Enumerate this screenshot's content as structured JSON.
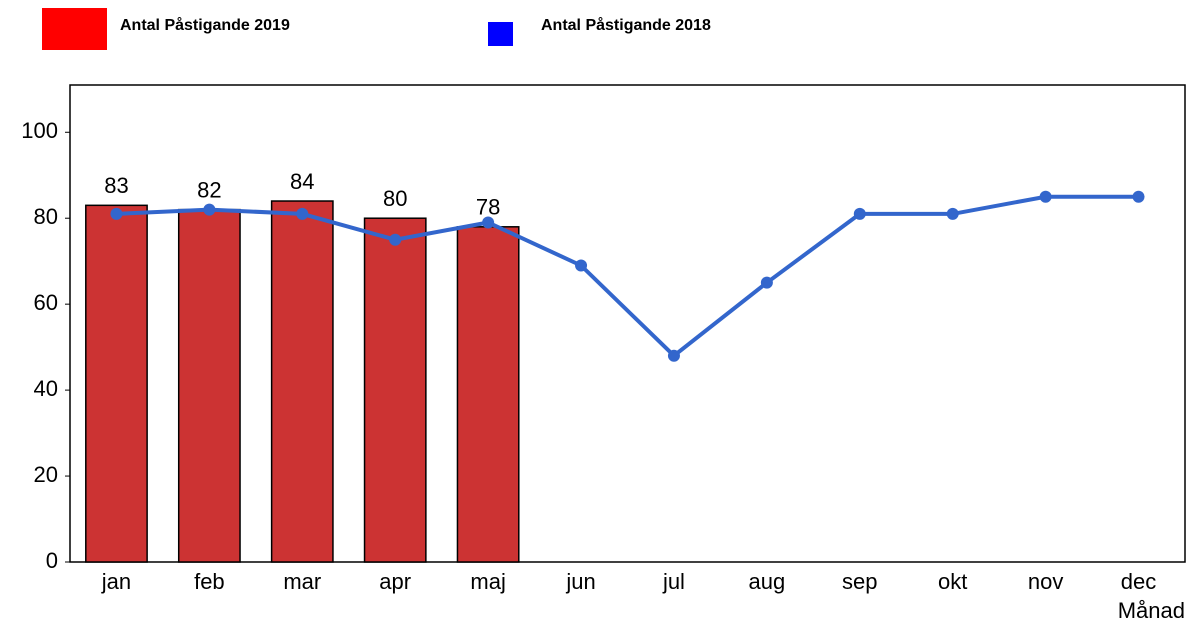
{
  "chart_data": {
    "type": "bar",
    "categories": [
      "jan",
      "feb",
      "mar",
      "apr",
      "maj",
      "jun",
      "jul",
      "aug",
      "sep",
      "okt",
      "nov",
      "dec"
    ],
    "x_label": "Månad",
    "series": [
      {
        "name": "Antal Påstigande 2019",
        "type": "bar",
        "color": "#cc3333",
        "legend_color": "#ff0000",
        "values": [
          83,
          82,
          84,
          80,
          78,
          null,
          null,
          null,
          null,
          null,
          null,
          null
        ]
      },
      {
        "name": "Antal Påstigande 2018",
        "type": "line",
        "color": "#3366cc",
        "legend_color": "#0000ff",
        "values": [
          81,
          82,
          81,
          75,
          79,
          69,
          48,
          65,
          81,
          81,
          85,
          85
        ]
      }
    ],
    "ylim": [
      0,
      111
    ],
    "yticks": [
      0,
      20,
      40,
      60,
      80,
      100
    ]
  }
}
